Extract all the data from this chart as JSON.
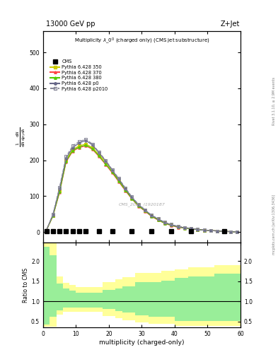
{
  "title_top": "13000 GeV pp",
  "title_right": "Z+Jet",
  "plot_title": "Multiplicity $\\lambda\\_0^0$ (charged only) (CMS jet substructure)",
  "xlabel": "multiplicity (charged-only)",
  "ylabel_ratio": "Ratio to CMS",
  "watermark": "CMS_2021_I1920187",
  "rivet_label": "Rivet 3.1.10, ≥ 2.9M events",
  "arxiv_label": "mcplots.cern.ch [arXiv:1306.3436]",
  "xlim": [
    0,
    60
  ],
  "ylim_main": [
    -30,
    560
  ],
  "ylim_ratio": [
    0.35,
    2.45
  ],
  "yticks_main": [
    0,
    100,
    200,
    300,
    400,
    500
  ],
  "yticks_ratio": [
    0.5,
    1.0,
    1.5,
    2.0
  ],
  "cms_x": [
    1,
    3,
    5,
    7,
    9,
    11,
    13,
    17,
    21,
    27,
    33,
    39,
    45,
    55
  ],
  "cms_y": [
    2,
    2,
    2,
    2,
    2,
    2,
    2,
    2,
    2,
    2,
    2,
    2,
    2,
    2
  ],
  "main_x": [
    1,
    3,
    5,
    7,
    9,
    11,
    13,
    15,
    17,
    19,
    21,
    23,
    25,
    27,
    29,
    31,
    33,
    35,
    37,
    39,
    41,
    43,
    45,
    47,
    49,
    51,
    53,
    55,
    57,
    59
  ],
  "p350_y": [
    5,
    45,
    115,
    200,
    230,
    240,
    245,
    235,
    215,
    195,
    170,
    145,
    120,
    95,
    75,
    60,
    45,
    35,
    25,
    20,
    15,
    12,
    10,
    7,
    5,
    4,
    3,
    2,
    1,
    0
  ],
  "p370_y": [
    5,
    45,
    110,
    195,
    225,
    235,
    240,
    230,
    210,
    188,
    165,
    140,
    115,
    92,
    72,
    58,
    43,
    33,
    24,
    18,
    13,
    11,
    9,
    7,
    5,
    4,
    3,
    2,
    1,
    0
  ],
  "p380_y": [
    5,
    45,
    112,
    197,
    227,
    237,
    242,
    232,
    212,
    190,
    167,
    142,
    117,
    93,
    73,
    59,
    44,
    34,
    24,
    19,
    14,
    11,
    9,
    7,
    5,
    4,
    3,
    2,
    1,
    0
  ],
  "p0_y": [
    5,
    48,
    120,
    205,
    235,
    248,
    255,
    242,
    220,
    198,
    172,
    147,
    121,
    96,
    76,
    61,
    46,
    36,
    26,
    20,
    15,
    12,
    10,
    7,
    5,
    4,
    3,
    2,
    1,
    0
  ],
  "p2010_y": [
    5,
    50,
    125,
    210,
    240,
    252,
    258,
    245,
    222,
    200,
    174,
    149,
    123,
    98,
    77,
    62,
    47,
    37,
    27,
    21,
    16,
    13,
    10,
    8,
    6,
    4,
    3,
    2,
    1,
    0
  ],
  "color_p350": "#cccc00",
  "color_p370": "#ff4444",
  "color_p380": "#55cc00",
  "color_p0": "#666688",
  "color_p2010": "#888899",
  "ratio_bins": [
    0,
    2,
    4,
    6,
    8,
    10,
    12,
    14,
    16,
    18,
    20,
    22,
    24,
    26,
    28,
    30,
    32,
    34,
    36,
    38,
    40,
    42,
    44,
    46,
    48,
    50,
    52,
    54,
    56,
    58,
    60
  ],
  "ratio_green_upper": [
    2.35,
    2.15,
    1.45,
    1.32,
    1.26,
    1.22,
    1.22,
    1.22,
    1.22,
    1.28,
    1.28,
    1.32,
    1.38,
    1.38,
    1.48,
    1.48,
    1.48,
    1.48,
    1.52,
    1.52,
    1.58,
    1.58,
    1.62,
    1.62,
    1.62,
    1.62,
    1.68,
    1.68,
    1.68,
    1.68
  ],
  "ratio_green_lower": [
    0.42,
    0.62,
    0.78,
    0.84,
    0.84,
    0.84,
    0.84,
    0.84,
    0.84,
    0.82,
    0.82,
    0.76,
    0.72,
    0.72,
    0.66,
    0.66,
    0.62,
    0.62,
    0.62,
    0.62,
    0.52,
    0.52,
    0.52,
    0.52,
    0.52,
    0.52,
    0.52,
    0.52,
    0.52,
    0.52
  ],
  "ratio_yellow_upper": [
    2.45,
    2.45,
    1.62,
    1.46,
    1.4,
    1.36,
    1.36,
    1.36,
    1.36,
    1.48,
    1.48,
    1.54,
    1.6,
    1.6,
    1.7,
    1.7,
    1.7,
    1.7,
    1.75,
    1.75,
    1.8,
    1.8,
    1.85,
    1.85,
    1.85,
    1.85,
    1.9,
    1.9,
    1.9,
    1.9
  ],
  "ratio_yellow_lower": [
    0.37,
    0.37,
    0.68,
    0.74,
    0.74,
    0.74,
    0.74,
    0.74,
    0.74,
    0.64,
    0.64,
    0.58,
    0.54,
    0.54,
    0.48,
    0.48,
    0.44,
    0.44,
    0.44,
    0.44,
    0.39,
    0.39,
    0.39,
    0.39,
    0.39,
    0.39,
    0.39,
    0.39,
    0.39,
    0.39
  ]
}
